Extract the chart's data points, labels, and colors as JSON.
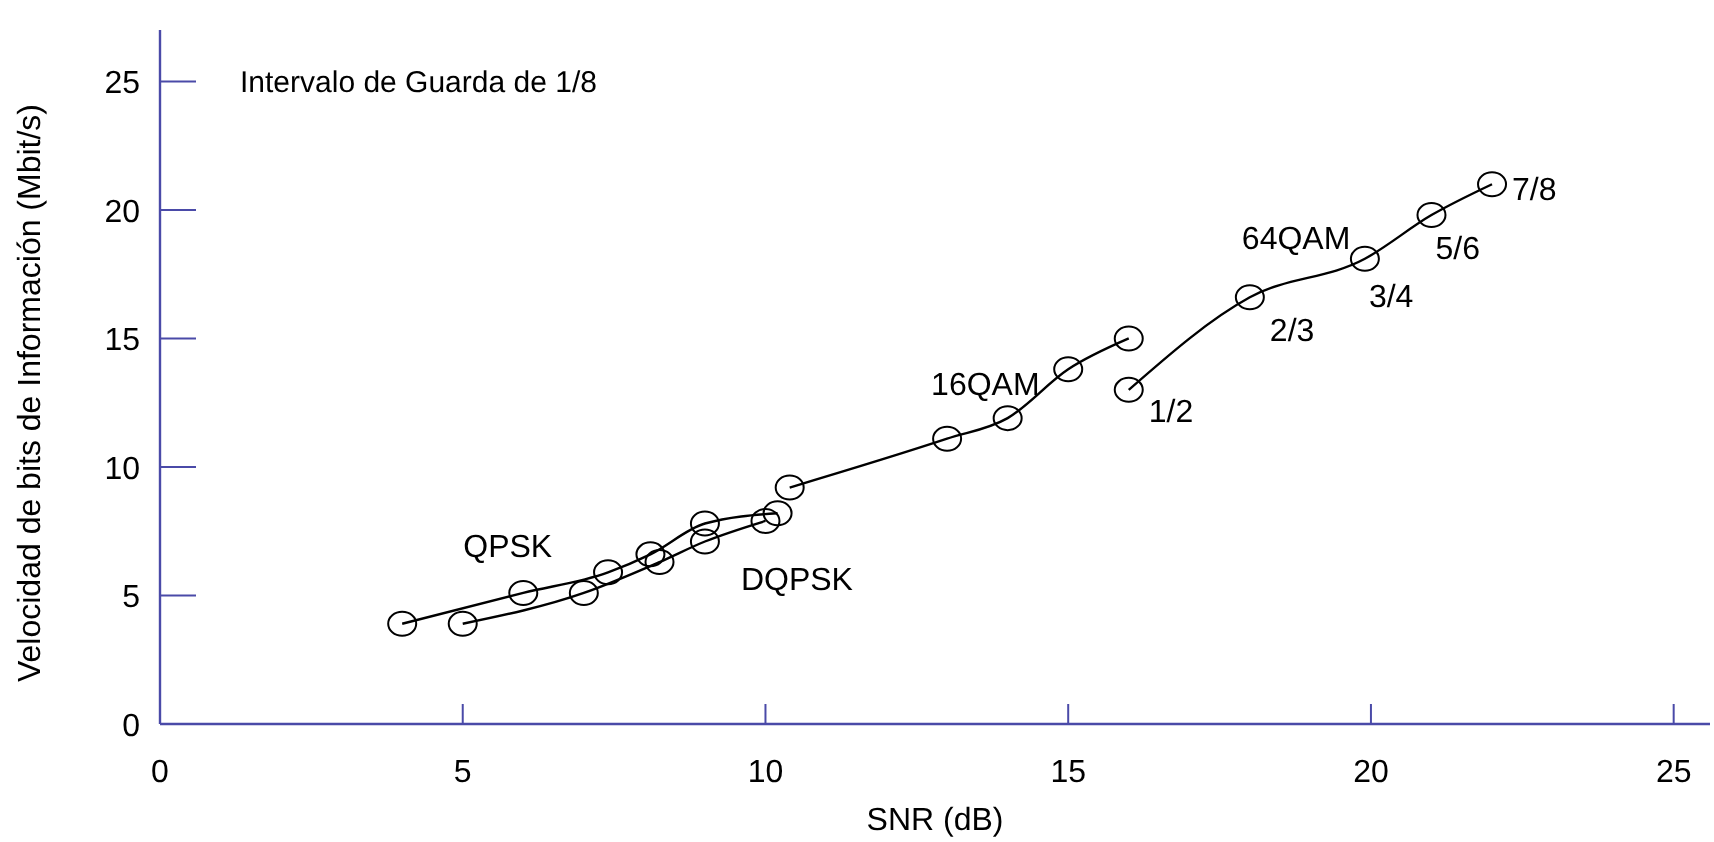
{
  "chart_data": {
    "type": "line",
    "xlabel": "SNR (dB)",
    "ylabel": "Velocidad de bits de Información (Mbit/s)",
    "xlim": [
      0,
      25.6
    ],
    "ylim": [
      0,
      27
    ],
    "xticks": [
      0,
      5,
      10,
      15,
      20,
      25
    ],
    "yticks": [
      0,
      5,
      10,
      15,
      20,
      25
    ],
    "grid": false,
    "marker": "circle",
    "line_style": "solid",
    "series": [
      {
        "name": "QPSK",
        "color": "#000000",
        "x": [
          4,
          6,
          7.4,
          8.1,
          9,
          10.2
        ],
        "values": [
          3.9,
          5.1,
          5.9,
          6.6,
          7.8,
          8.2
        ]
      },
      {
        "name": "DQPSK",
        "color": "#000000",
        "x": [
          5,
          7,
          8.25,
          9,
          10
        ],
        "values": [
          3.9,
          5.1,
          6.3,
          7.1,
          7.9
        ]
      },
      {
        "name": "16QAM",
        "color": "#000000",
        "x": [
          10.4,
          13,
          14,
          15,
          16
        ],
        "values": [
          9.2,
          11.1,
          11.9,
          13.8,
          15
        ]
      },
      {
        "name": "64QAM",
        "color": "#000000",
        "x": [
          16,
          18,
          19.9,
          21,
          22
        ],
        "values": [
          13,
          16.6,
          18.1,
          19.8,
          21
        ]
      }
    ],
    "annotations": [
      "Intervalo de Guarda de 1/8",
      {
        "text": "1/2",
        "x": 16,
        "y": 13
      },
      {
        "text": "2/3",
        "x": 18,
        "y": 16.6
      },
      {
        "text": "3/4",
        "x": 19.9,
        "y": 18.1
      },
      {
        "text": "5/6",
        "x": 21,
        "y": 19.8
      },
      {
        "text": "7/8",
        "x": 22,
        "y": 21
      }
    ]
  }
}
